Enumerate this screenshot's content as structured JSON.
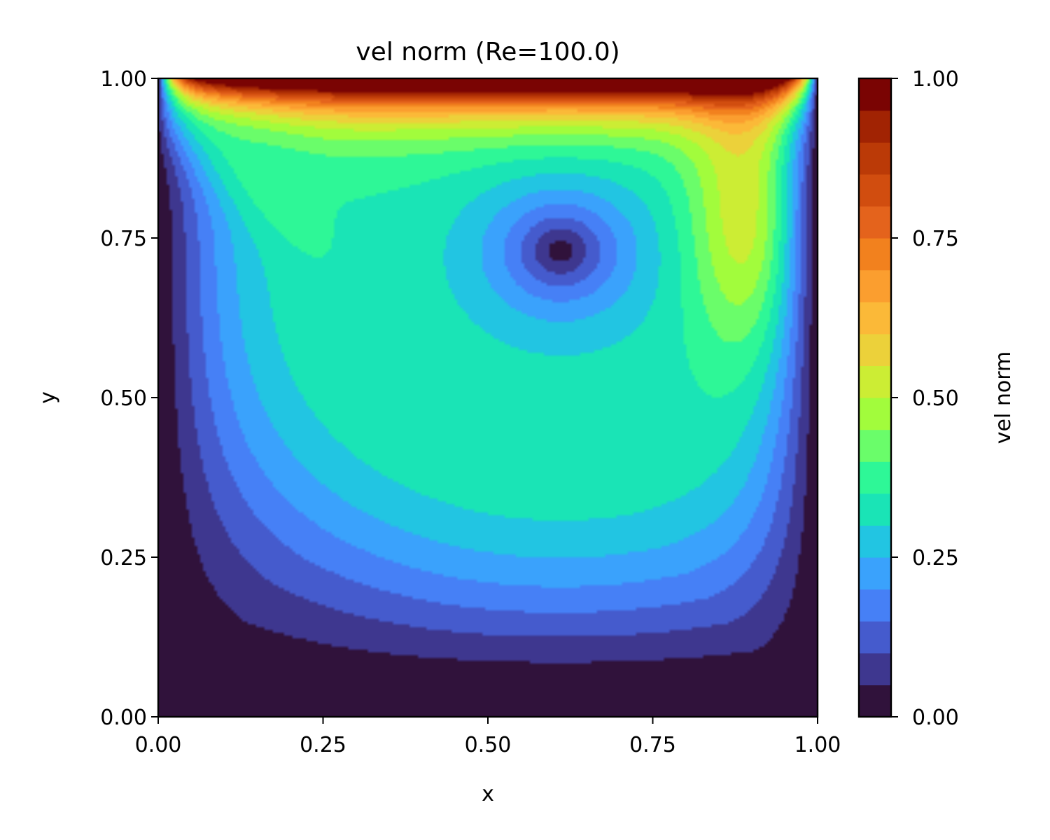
{
  "chart_data": {
    "type": "heatmap",
    "subtype": "filled-contour",
    "title": "vel norm (Re=100.0)",
    "xlabel": "x",
    "ylabel": "y",
    "xlim": [
      0.0,
      1.0
    ],
    "ylim": [
      0.0,
      1.0
    ],
    "xticks": [
      0.0,
      0.25,
      0.5,
      0.75,
      1.0
    ],
    "yticks": [
      0.0,
      0.25,
      0.5,
      0.75,
      1.0
    ],
    "xtick_labels": [
      "0.00",
      "0.25",
      "0.50",
      "0.75",
      "1.00"
    ],
    "ytick_labels": [
      "0.00",
      "0.25",
      "0.50",
      "0.75",
      "1.00"
    ],
    "colormap": "turbo",
    "colorbar": {
      "label": "vel norm",
      "range": [
        0.0,
        1.0
      ],
      "ticks": [
        0.0,
        0.25,
        0.5,
        0.75,
        1.0
      ],
      "tick_labels": [
        "0.00",
        "0.25",
        "0.50",
        "0.75",
        "1.00"
      ],
      "levels": [
        0.0,
        0.05,
        0.1,
        0.15,
        0.2,
        0.25,
        0.3,
        0.35,
        0.4,
        0.45,
        0.5,
        0.55,
        0.6,
        0.65,
        0.7,
        0.75,
        0.8,
        0.85,
        0.9,
        0.95,
        1.0
      ],
      "colors": [
        "#30123b",
        "#3e378f",
        "#455bcd",
        "#4680f6",
        "#3aa2fc",
        "#22c5e2",
        "#1ae4b6",
        "#2ef797",
        "#6afd6a",
        "#a2fc3c",
        "#cced34",
        "#ecd13a",
        "#fbb938",
        "#fb9e2f",
        "#f2811e",
        "#e4631c",
        "#d14d0f",
        "#bb3a07",
        "#a12303",
        "#7a0403"
      ]
    },
    "field": {
      "description": "lid-driven cavity velocity magnitude; lid at y=1 moving with speed 1",
      "primary_vortex_center": [
        0.61,
        0.73
      ],
      "max_interior_jet": {
        "x": 0.9,
        "y": 0.78,
        "value": 0.53
      }
    }
  }
}
